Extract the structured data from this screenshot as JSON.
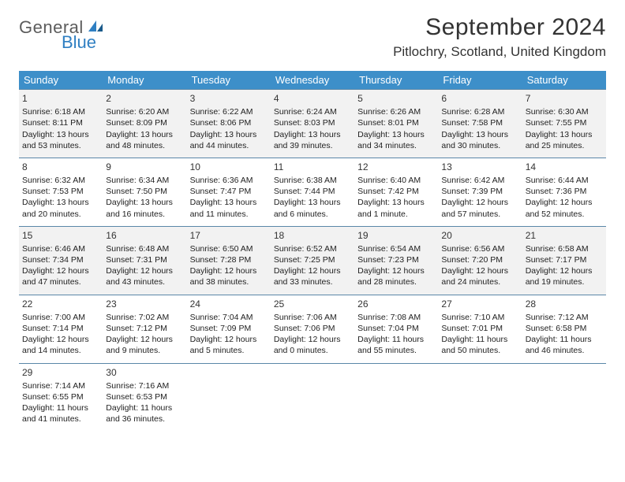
{
  "logo": {
    "general": "General",
    "blue": "Blue"
  },
  "title": "September 2024",
  "location": "Pitlochry, Scotland, United Kingdom",
  "colors": {
    "header_bg": "#3d8fc9",
    "header_text": "#ffffff",
    "border": "#5a87a8",
    "shaded": "#f2f2f2",
    "logo_gray": "#5c5c5c",
    "logo_blue": "#2f7fc2"
  },
  "day_headers": [
    "Sunday",
    "Monday",
    "Tuesday",
    "Wednesday",
    "Thursday",
    "Friday",
    "Saturday"
  ],
  "days": [
    {
      "n": "1",
      "sr": "6:18 AM",
      "ss": "8:11 PM",
      "dl": "13 hours and 53 minutes."
    },
    {
      "n": "2",
      "sr": "6:20 AM",
      "ss": "8:09 PM",
      "dl": "13 hours and 48 minutes."
    },
    {
      "n": "3",
      "sr": "6:22 AM",
      "ss": "8:06 PM",
      "dl": "13 hours and 44 minutes."
    },
    {
      "n": "4",
      "sr": "6:24 AM",
      "ss": "8:03 PM",
      "dl": "13 hours and 39 minutes."
    },
    {
      "n": "5",
      "sr": "6:26 AM",
      "ss": "8:01 PM",
      "dl": "13 hours and 34 minutes."
    },
    {
      "n": "6",
      "sr": "6:28 AM",
      "ss": "7:58 PM",
      "dl": "13 hours and 30 minutes."
    },
    {
      "n": "7",
      "sr": "6:30 AM",
      "ss": "7:55 PM",
      "dl": "13 hours and 25 minutes."
    },
    {
      "n": "8",
      "sr": "6:32 AM",
      "ss": "7:53 PM",
      "dl": "13 hours and 20 minutes."
    },
    {
      "n": "9",
      "sr": "6:34 AM",
      "ss": "7:50 PM",
      "dl": "13 hours and 16 minutes."
    },
    {
      "n": "10",
      "sr": "6:36 AM",
      "ss": "7:47 PM",
      "dl": "13 hours and 11 minutes."
    },
    {
      "n": "11",
      "sr": "6:38 AM",
      "ss": "7:44 PM",
      "dl": "13 hours and 6 minutes."
    },
    {
      "n": "12",
      "sr": "6:40 AM",
      "ss": "7:42 PM",
      "dl": "13 hours and 1 minute."
    },
    {
      "n": "13",
      "sr": "6:42 AM",
      "ss": "7:39 PM",
      "dl": "12 hours and 57 minutes."
    },
    {
      "n": "14",
      "sr": "6:44 AM",
      "ss": "7:36 PM",
      "dl": "12 hours and 52 minutes."
    },
    {
      "n": "15",
      "sr": "6:46 AM",
      "ss": "7:34 PM",
      "dl": "12 hours and 47 minutes."
    },
    {
      "n": "16",
      "sr": "6:48 AM",
      "ss": "7:31 PM",
      "dl": "12 hours and 43 minutes."
    },
    {
      "n": "17",
      "sr": "6:50 AM",
      "ss": "7:28 PM",
      "dl": "12 hours and 38 minutes."
    },
    {
      "n": "18",
      "sr": "6:52 AM",
      "ss": "7:25 PM",
      "dl": "12 hours and 33 minutes."
    },
    {
      "n": "19",
      "sr": "6:54 AM",
      "ss": "7:23 PM",
      "dl": "12 hours and 28 minutes."
    },
    {
      "n": "20",
      "sr": "6:56 AM",
      "ss": "7:20 PM",
      "dl": "12 hours and 24 minutes."
    },
    {
      "n": "21",
      "sr": "6:58 AM",
      "ss": "7:17 PM",
      "dl": "12 hours and 19 minutes."
    },
    {
      "n": "22",
      "sr": "7:00 AM",
      "ss": "7:14 PM",
      "dl": "12 hours and 14 minutes."
    },
    {
      "n": "23",
      "sr": "7:02 AM",
      "ss": "7:12 PM",
      "dl": "12 hours and 9 minutes."
    },
    {
      "n": "24",
      "sr": "7:04 AM",
      "ss": "7:09 PM",
      "dl": "12 hours and 5 minutes."
    },
    {
      "n": "25",
      "sr": "7:06 AM",
      "ss": "7:06 PM",
      "dl": "12 hours and 0 minutes."
    },
    {
      "n": "26",
      "sr": "7:08 AM",
      "ss": "7:04 PM",
      "dl": "11 hours and 55 minutes."
    },
    {
      "n": "27",
      "sr": "7:10 AM",
      "ss": "7:01 PM",
      "dl": "11 hours and 50 minutes."
    },
    {
      "n": "28",
      "sr": "7:12 AM",
      "ss": "6:58 PM",
      "dl": "11 hours and 46 minutes."
    },
    {
      "n": "29",
      "sr": "7:14 AM",
      "ss": "6:55 PM",
      "dl": "11 hours and 41 minutes."
    },
    {
      "n": "30",
      "sr": "7:16 AM",
      "ss": "6:53 PM",
      "dl": "11 hours and 36 minutes."
    }
  ],
  "labels": {
    "sunrise": "Sunrise:",
    "sunset": "Sunset:",
    "daylight": "Daylight:"
  },
  "layout": {
    "total_cells": 35,
    "shaded_rows": [
      0,
      2
    ]
  }
}
